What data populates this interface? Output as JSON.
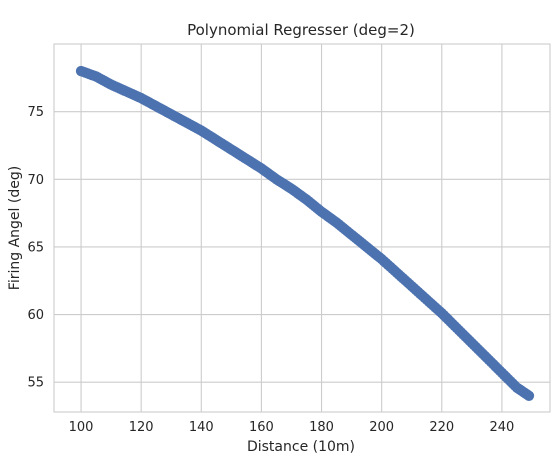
{
  "chart_data": {
    "type": "scatter",
    "title": "Polynomial Regresser (deg=2)",
    "xlabel": "Distance (10m)",
    "ylabel": "Firing Angel (deg)",
    "xlim": [
      91,
      256
    ],
    "ylim": [
      52.8,
      80.0
    ],
    "x_ticks": [
      100,
      120,
      140,
      160,
      180,
      200,
      220,
      240
    ],
    "y_ticks": [
      55,
      60,
      65,
      70,
      75
    ],
    "x_tick_labels": [
      "100",
      "120",
      "140",
      "160",
      "180",
      "200",
      "220",
      "240"
    ],
    "y_tick_labels": [
      "55",
      "60",
      "65",
      "70",
      "75"
    ],
    "grid": true,
    "marker_color": "#4c72b0",
    "series": [
      {
        "points": [
          [
            100,
            78.0
          ],
          [
            105,
            77.6
          ],
          [
            110,
            77.0
          ],
          [
            115,
            76.5
          ],
          [
            120,
            76.0
          ],
          [
            125,
            75.4
          ],
          [
            130,
            74.8
          ],
          [
            135,
            74.2
          ],
          [
            140,
            73.6
          ],
          [
            145,
            72.9
          ],
          [
            150,
            72.2
          ],
          [
            155,
            71.5
          ],
          [
            160,
            70.8
          ],
          [
            165,
            70.0
          ],
          [
            170,
            69.3
          ],
          [
            175,
            68.5
          ],
          [
            180,
            67.6
          ],
          [
            185,
            66.8
          ],
          [
            190,
            65.9
          ],
          [
            195,
            65.0
          ],
          [
            200,
            64.1
          ],
          [
            205,
            63.1
          ],
          [
            210,
            62.1
          ],
          [
            215,
            61.1
          ],
          [
            220,
            60.1
          ],
          [
            225,
            59.0
          ],
          [
            230,
            57.9
          ],
          [
            235,
            56.8
          ],
          [
            240,
            55.7
          ],
          [
            245,
            54.6
          ],
          [
            249,
            54.0
          ]
        ]
      }
    ]
  }
}
